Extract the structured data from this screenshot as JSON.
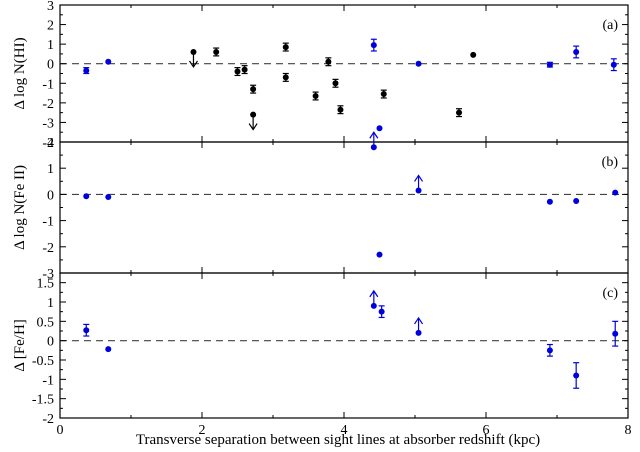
{
  "chart_data": {
    "type": "scatter",
    "xlabel": "Transverse separation between sight lines at absorber redshift (kpc)",
    "xlim": [
      0,
      8
    ],
    "xticks": [
      0,
      2,
      4,
      6,
      8
    ],
    "colors": {
      "black_series": "#000000",
      "blue_series": "#0000dd"
    },
    "panels": [
      {
        "id": "a",
        "label": "(a)",
        "ylabel": "Δ log N(HI)",
        "ylim": [
          -4,
          3
        ],
        "yticks": [
          -4,
          -3,
          -2,
          -1,
          0,
          1,
          2,
          3
        ],
        "zero_line": true,
        "points": [
          {
            "x": 0.37,
            "y": -0.35,
            "err": 0.15,
            "color": "blue"
          },
          {
            "x": 0.68,
            "y": 0.1,
            "color": "blue"
          },
          {
            "x": 1.88,
            "y": 0.6,
            "color": "black",
            "limit": "upper"
          },
          {
            "x": 2.2,
            "y": 0.6,
            "err": 0.2,
            "color": "black"
          },
          {
            "x": 2.5,
            "y": -0.4,
            "err": 0.2,
            "color": "black"
          },
          {
            "x": 2.6,
            "y": -0.3,
            "err": 0.2,
            "color": "black"
          },
          {
            "x": 2.72,
            "y": -1.3,
            "err": 0.2,
            "color": "black"
          },
          {
            "x": 2.72,
            "y": -2.6,
            "color": "black",
            "limit": "upper"
          },
          {
            "x": 3.18,
            "y": 0.85,
            "err": 0.2,
            "color": "black"
          },
          {
            "x": 3.18,
            "y": -0.7,
            "err": 0.2,
            "color": "black"
          },
          {
            "x": 3.6,
            "y": -1.65,
            "err": 0.2,
            "color": "black"
          },
          {
            "x": 3.78,
            "y": 0.1,
            "err": 0.2,
            "color": "black"
          },
          {
            "x": 3.88,
            "y": -1.0,
            "err": 0.2,
            "color": "black"
          },
          {
            "x": 3.95,
            "y": -2.35,
            "err": 0.2,
            "color": "black"
          },
          {
            "x": 4.42,
            "y": 0.95,
            "err": 0.3,
            "color": "blue"
          },
          {
            "x": 4.5,
            "y": -3.3,
            "color": "blue"
          },
          {
            "x": 4.56,
            "y": -1.55,
            "err": 0.2,
            "color": "black"
          },
          {
            "x": 5.05,
            "y": 0.0,
            "color": "blue"
          },
          {
            "x": 5.62,
            "y": -2.5,
            "err": 0.2,
            "color": "black"
          },
          {
            "x": 5.82,
            "y": 0.45,
            "color": "black"
          },
          {
            "x": 6.9,
            "y": -0.05,
            "err": 0.12,
            "color": "blue"
          },
          {
            "x": 7.27,
            "y": 0.6,
            "err": 0.3,
            "color": "blue"
          },
          {
            "x": 7.8,
            "y": -0.05,
            "err": 0.3,
            "color": "blue"
          }
        ]
      },
      {
        "id": "b",
        "label": "(b)",
        "ylabel": "Δ log N(Fe II)",
        "ylim": [
          -3,
          2
        ],
        "yticks": [
          -3,
          -2,
          -1,
          0,
          1,
          2
        ],
        "zero_line": true,
        "points": [
          {
            "x": 0.37,
            "y": -0.07,
            "color": "blue"
          },
          {
            "x": 0.68,
            "y": -0.1,
            "color": "blue"
          },
          {
            "x": 4.42,
            "y": 1.8,
            "color": "blue",
            "limit": "lower"
          },
          {
            "x": 4.5,
            "y": -2.3,
            "color": "blue"
          },
          {
            "x": 5.05,
            "y": 0.15,
            "color": "blue",
            "limit": "lower"
          },
          {
            "x": 6.9,
            "y": -0.28,
            "color": "blue"
          },
          {
            "x": 7.27,
            "y": -0.25,
            "color": "blue"
          },
          {
            "x": 7.82,
            "y": 0.07,
            "color": "blue"
          }
        ]
      },
      {
        "id": "c",
        "label": "(c)",
        "ylabel": "Δ [Fe/H]",
        "ylim": [
          -2,
          1.75
        ],
        "yticks": [
          -2,
          -1.5,
          -1,
          -0.5,
          0,
          0.5,
          1,
          1.5
        ],
        "zero_line": true,
        "points": [
          {
            "x": 0.37,
            "y": 0.27,
            "err": 0.15,
            "color": "blue"
          },
          {
            "x": 0.68,
            "y": -0.22,
            "color": "blue"
          },
          {
            "x": 4.42,
            "y": 0.9,
            "color": "blue",
            "limit": "lower"
          },
          {
            "x": 4.53,
            "y": 0.75,
            "err": 0.15,
            "color": "blue"
          },
          {
            "x": 5.05,
            "y": 0.2,
            "color": "blue",
            "limit": "lower"
          },
          {
            "x": 6.9,
            "y": -0.25,
            "err": 0.15,
            "color": "blue"
          },
          {
            "x": 7.27,
            "y": -0.9,
            "err": 0.33,
            "color": "blue"
          },
          {
            "x": 7.82,
            "y": 0.18,
            "err": 0.32,
            "color": "blue"
          }
        ]
      }
    ]
  }
}
